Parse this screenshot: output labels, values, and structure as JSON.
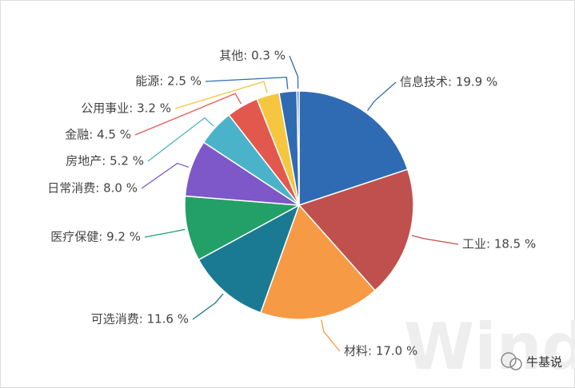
{
  "chart_data": {
    "type": "pie",
    "values": [
      19.9,
      18.5,
      17.0,
      11.6,
      9.2,
      8.0,
      5.2,
      4.5,
      3.2,
      2.5,
      0.3
    ],
    "value_labels": [
      "信息技术: 19.9 %",
      "工业: 18.5 %",
      "材料: 17.0 %",
      "可选消费: 11.6 %",
      "医疗保健: 9.2 %",
      "日常消费: 8.0 %",
      "房地产: 5.2 %",
      "金融: 4.5 %",
      "公用事业: 3.2 %",
      "能源: 2.5 %",
      "其他: 0.3 %"
    ],
    "colors": [
      "#2f6bb3",
      "#c0504d",
      "#f79a46",
      "#1b7a93",
      "#23a067",
      "#7e57c8",
      "#4bb3c9",
      "#e3584d",
      "#f5c640",
      "#2f6bb3",
      "#2f6bb3"
    ],
    "watermark": "Wind",
    "source": "牛基说"
  }
}
